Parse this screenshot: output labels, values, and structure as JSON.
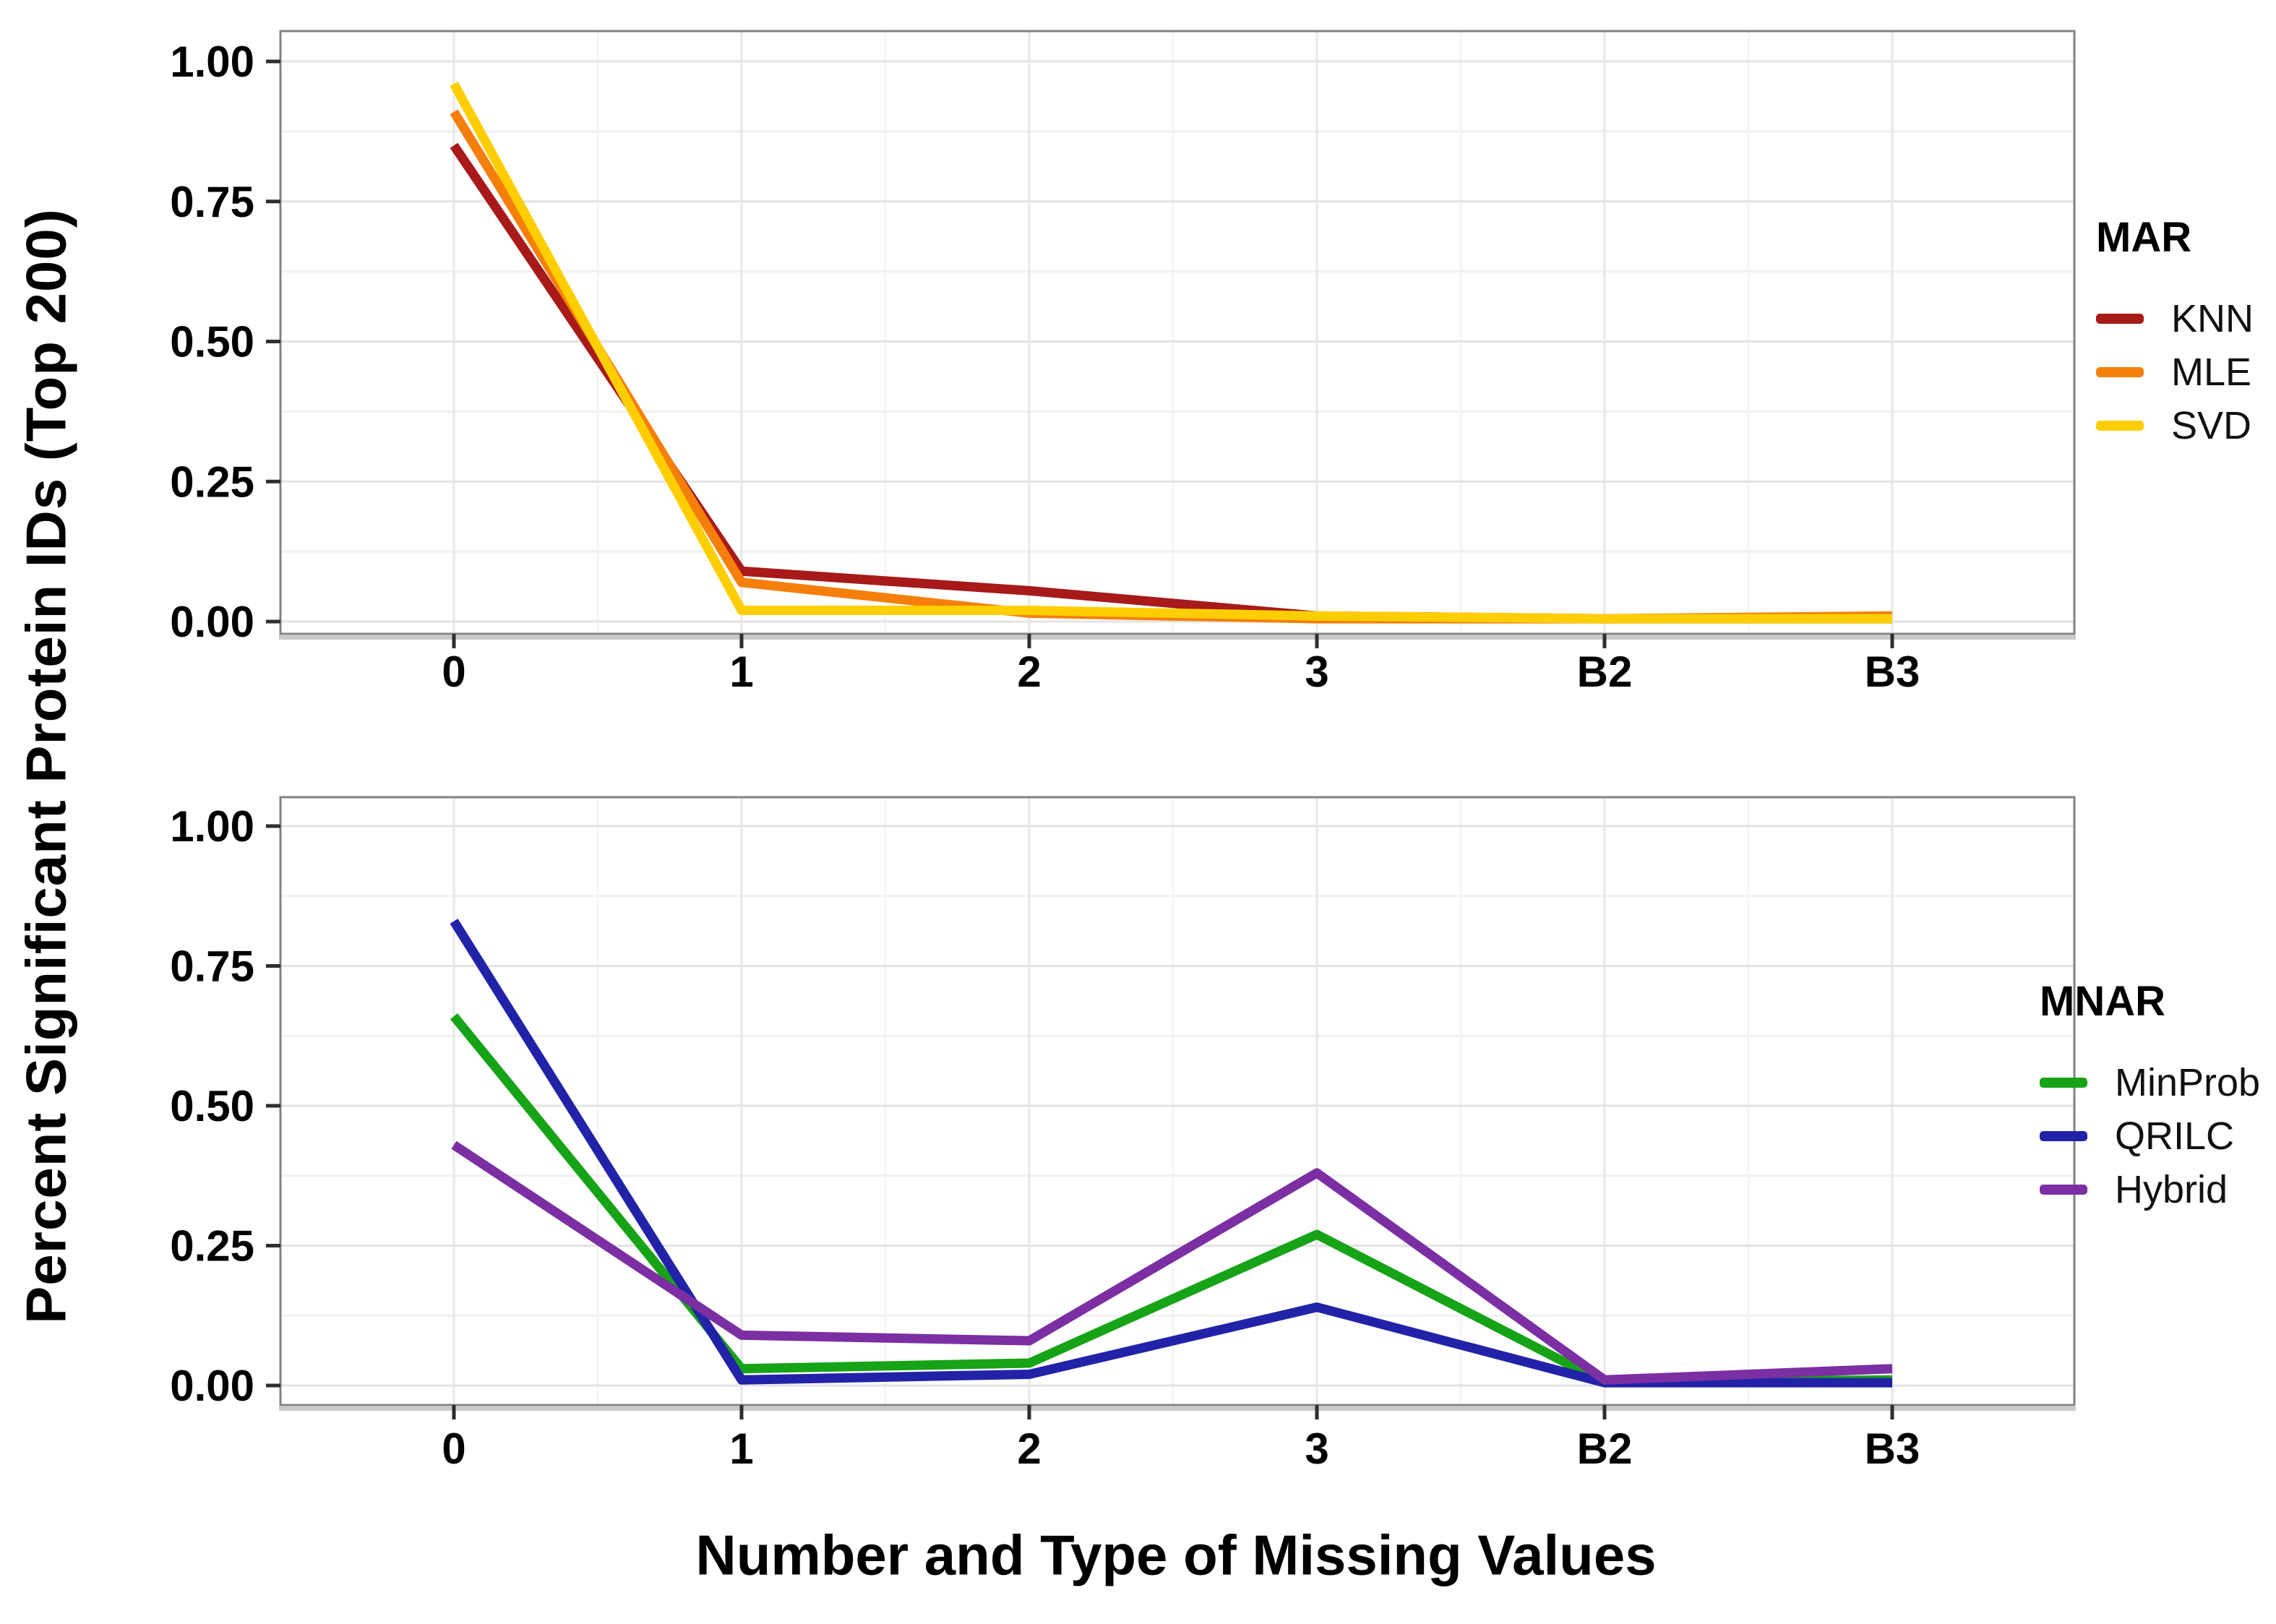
{
  "figure": {
    "y_axis_title": "Percent Significant Protein IDs (Top 200)",
    "x_axis_title": "Number and Type of Missing Values"
  },
  "chart_data": [
    {
      "type": "line",
      "panel": "top",
      "categories": [
        "0",
        "1",
        "2",
        "3",
        "B2",
        "B3"
      ],
      "ylim": [
        0,
        1
      ],
      "ytick_values": [
        1.0,
        0.75,
        0.5,
        0.25,
        0.0
      ],
      "ytick_labels": [
        "1.00",
        "0.75",
        "0.50",
        "0.25",
        "0.00"
      ],
      "grid": "major and minor, light gray on white",
      "legend_title": "MAR",
      "legend_position": "right",
      "series": [
        {
          "name": "KNN",
          "color": "#A81A1A",
          "values": [
            0.85,
            0.09,
            0.055,
            0.01,
            0.005,
            0.005
          ]
        },
        {
          "name": "MLE",
          "color": "#F57F0B",
          "values": [
            0.91,
            0.07,
            0.015,
            0.005,
            0.005,
            0.01
          ]
        },
        {
          "name": "SVD",
          "color": "#FFCE00",
          "values": [
            0.96,
            0.02,
            0.02,
            0.01,
            0.005,
            0.005
          ]
        }
      ]
    },
    {
      "type": "line",
      "panel": "bottom",
      "categories": [
        "0",
        "1",
        "2",
        "3",
        "B2",
        "B3"
      ],
      "ylim": [
        0,
        1
      ],
      "ytick_values": [
        1.0,
        0.75,
        0.5,
        0.25,
        0.0
      ],
      "ytick_labels": [
        "1.00",
        "0.75",
        "0.50",
        "0.25",
        "0.00"
      ],
      "grid": "major and minor, light gray on white",
      "legend_title": "MNAR",
      "legend_position": "right",
      "series": [
        {
          "name": "MinProb",
          "color": "#17A317",
          "values": [
            0.66,
            0.03,
            0.04,
            0.27,
            0.005,
            0.01
          ]
        },
        {
          "name": "QRILC",
          "color": "#2222A8",
          "values": [
            0.83,
            0.01,
            0.02,
            0.14,
            0.005,
            0.005
          ]
        },
        {
          "name": "Hybrid",
          "color": "#7B2FA3",
          "values": [
            0.43,
            0.09,
            0.08,
            0.38,
            0.01,
            0.03
          ]
        }
      ]
    }
  ]
}
